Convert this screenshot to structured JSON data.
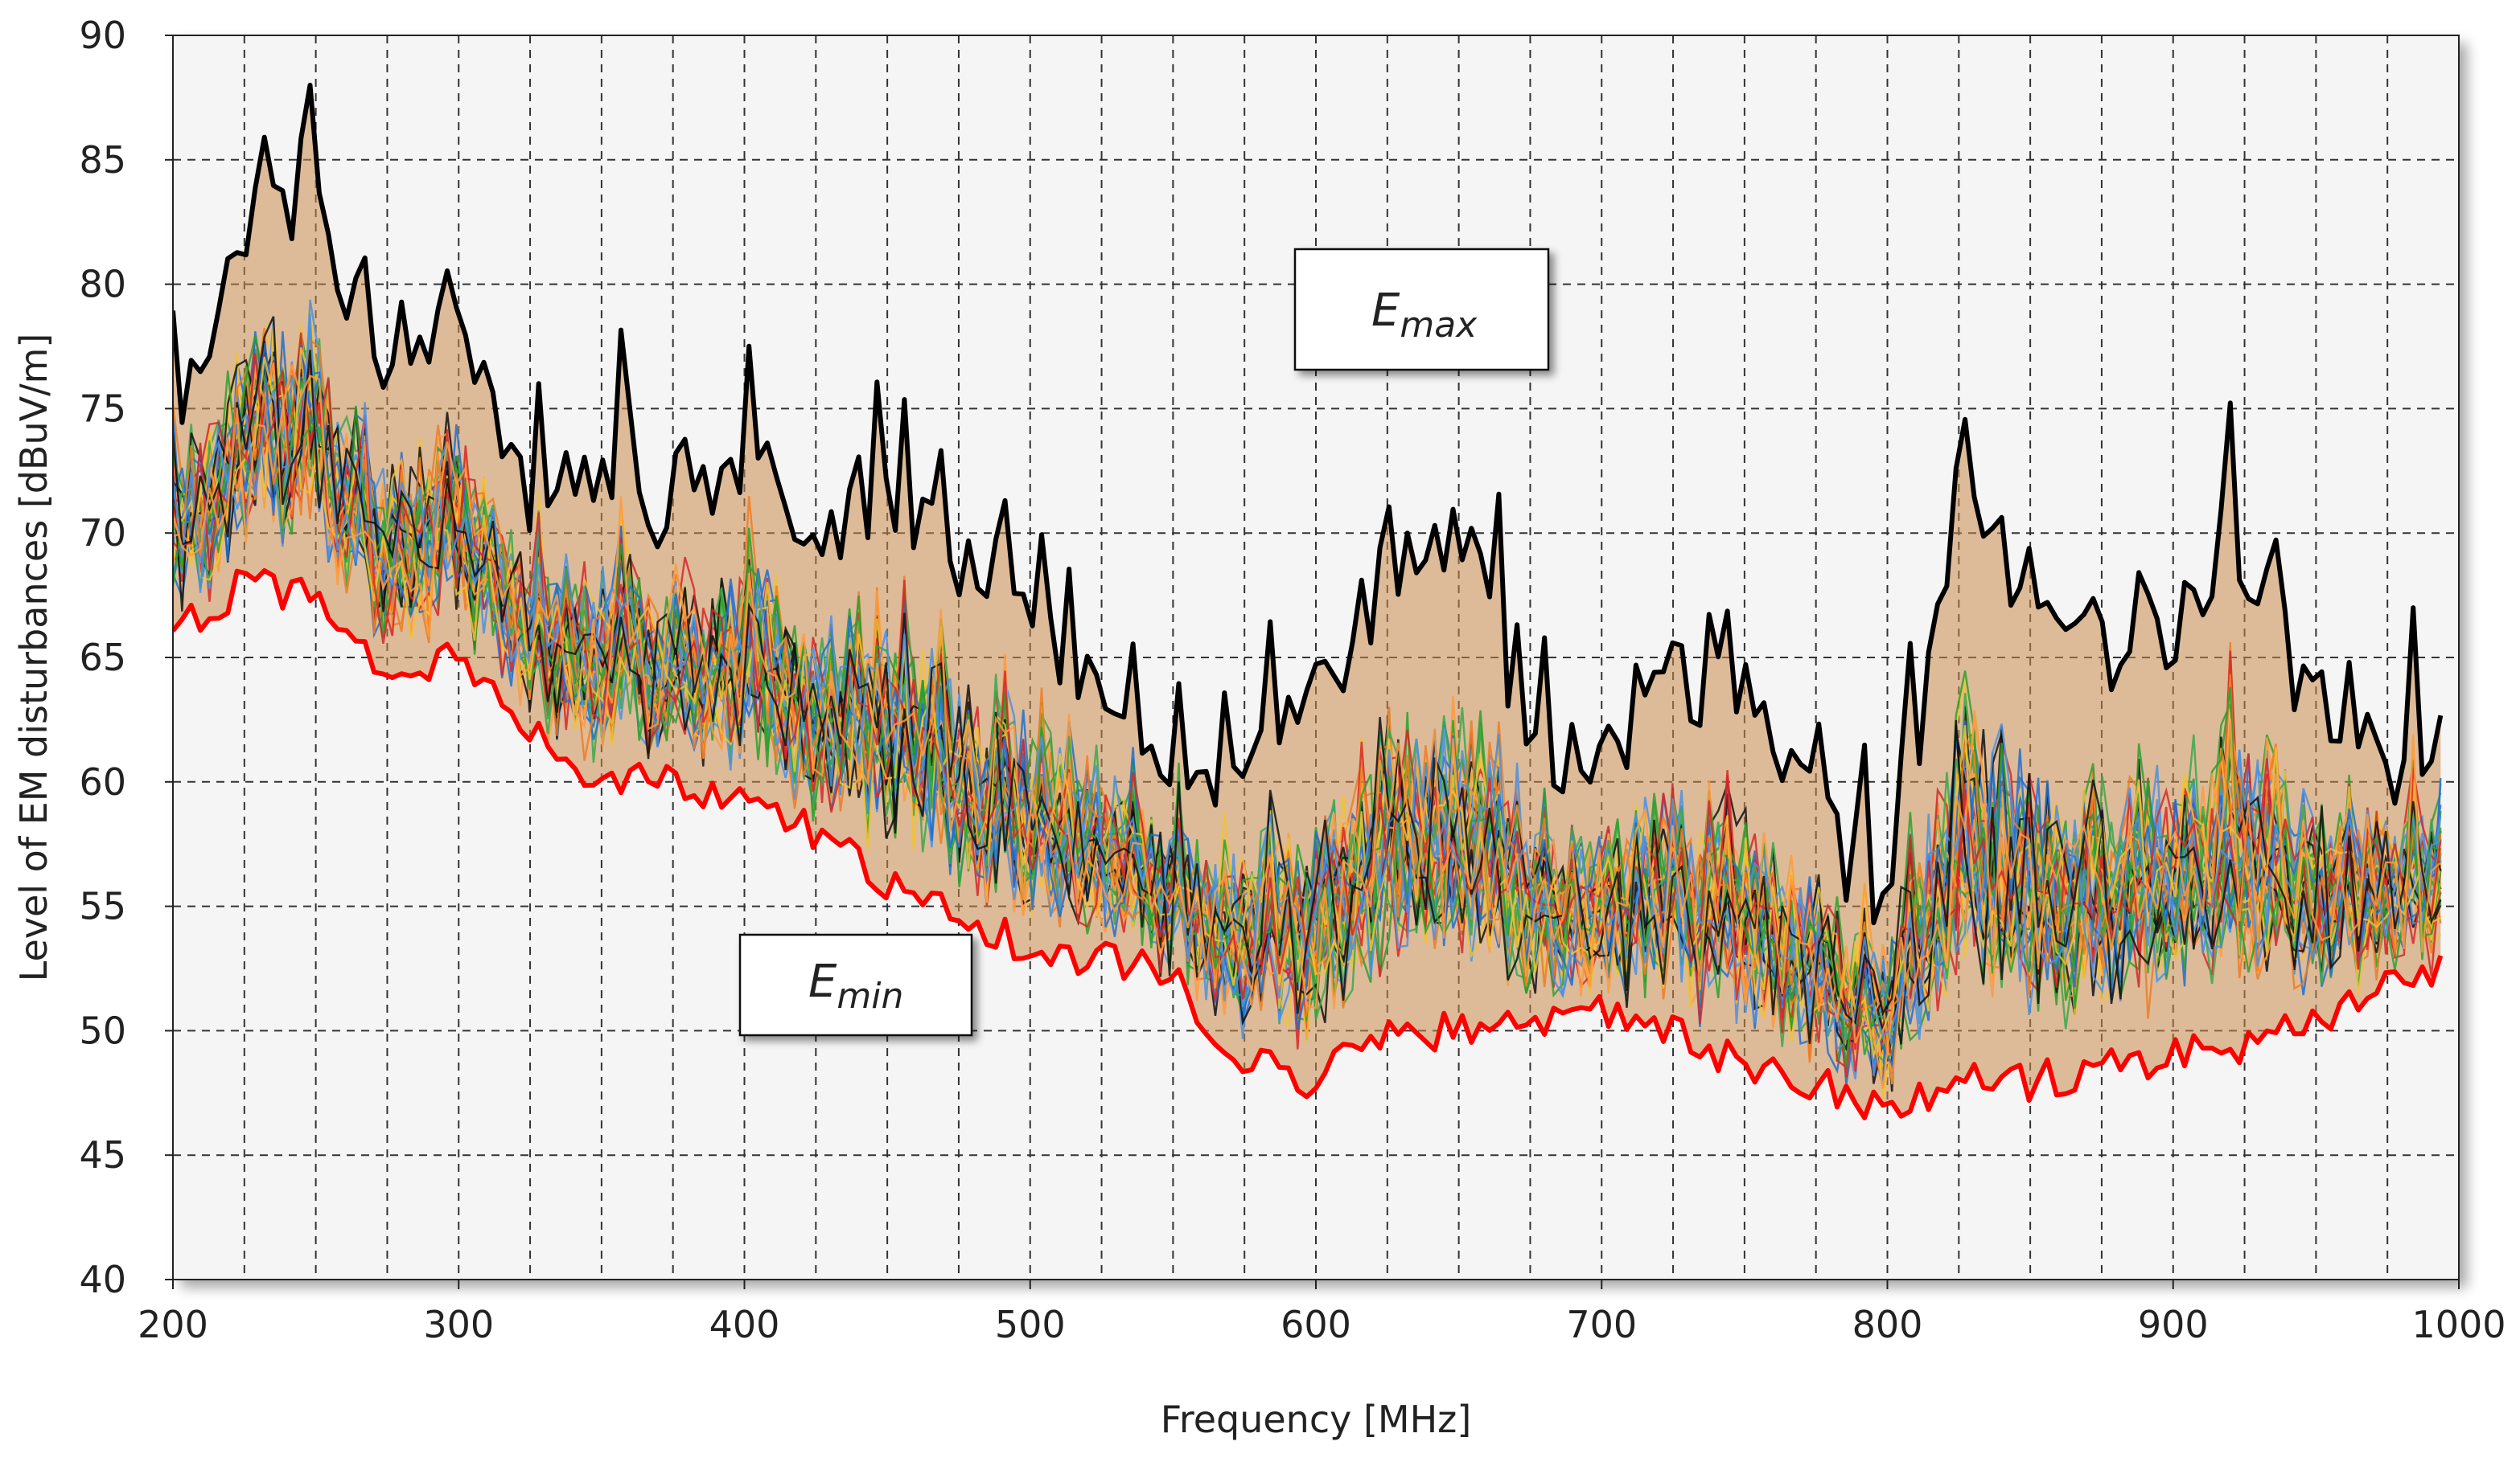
{
  "chart_data": {
    "type": "line",
    "title": "",
    "xlabel": "Frequency [MHz]",
    "ylabel": "Level of EM disturbances [dBuV/m]",
    "xlim": [
      200,
      1000
    ],
    "ylim": [
      40,
      90
    ],
    "x_ticks": [
      "200",
      "300",
      "400",
      "500",
      "600",
      "700",
      "800",
      "900",
      "1000"
    ],
    "y_ticks": [
      "40",
      "45",
      "50",
      "55",
      "60",
      "65",
      "70",
      "75",
      "80",
      "85",
      "90"
    ],
    "grid": true,
    "grid_style": "dashed",
    "x_minor_grid_step": 25,
    "colors": {
      "emax": "#000000",
      "emin": "#ff0000",
      "band": "#c98a4a",
      "plot_bg": "#f5f5f5",
      "grid": "#333333",
      "measurement_palette": [
        "#1f6fd1",
        "#ef7d22",
        "#2ca02c",
        "#f1c232",
        "#d62728",
        "#4a90e2",
        "#111111",
        "#ff9a3c",
        "#3aa84b"
      ]
    },
    "annotations": [
      {
        "base": "E",
        "sub": "max",
        "target": "Emax"
      },
      {
        "base": "E",
        "sub": "min",
        "target": "Emin"
      }
    ],
    "x": [
      200,
      225,
      250,
      275,
      300,
      325,
      350,
      375,
      400,
      425,
      450,
      475,
      500,
      525,
      550,
      575,
      600,
      625,
      650,
      675,
      700,
      725,
      750,
      775,
      800,
      825,
      850,
      875,
      900,
      925,
      950,
      975,
      1000
    ],
    "series": [
      {
        "role": "upper envelope",
        "values": [
          77,
          84,
          84.5,
          78,
          80,
          73,
          75,
          72,
          74,
          71,
          73,
          71,
          68,
          65,
          63,
          62,
          65,
          70,
          72,
          64,
          62,
          66,
          65,
          60,
          57,
          73,
          68,
          67,
          68,
          71,
          64,
          62,
          64
        ]
      },
      {
        "role": "lower envelope",
        "values": [
          66,
          68,
          67.5,
          64,
          65,
          62,
          60,
          60,
          59,
          58,
          56,
          55,
          53,
          53,
          52,
          49,
          48,
          50,
          50,
          50,
          51,
          50,
          48.5,
          48,
          46.5,
          48,
          48,
          48.5,
          49,
          49.5,
          50.5,
          52,
          53
        ]
      }
    ]
  }
}
